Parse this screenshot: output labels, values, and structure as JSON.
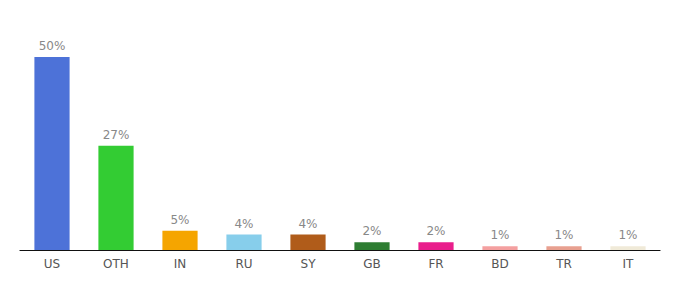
{
  "chart_data": {
    "type": "bar",
    "categories": [
      "US",
      "OTH",
      "IN",
      "RU",
      "SY",
      "GB",
      "FR",
      "BD",
      "TR",
      "IT"
    ],
    "values": [
      50,
      27,
      5,
      4,
      4,
      2,
      2,
      1,
      1,
      1
    ],
    "value_labels": [
      "50%",
      "27%",
      "5%",
      "4%",
      "4%",
      "2%",
      "2%",
      "1%",
      "1%",
      "1%"
    ],
    "colors": [
      "#4d72d8",
      "#33cc33",
      "#f5a500",
      "#87ceeb",
      "#b05c1a",
      "#2e7d32",
      "#e91e8c",
      "#f4a0a0",
      "#e8a090",
      "#f0ead8"
    ],
    "ylim": [
      0,
      57
    ],
    "data_labels": true,
    "tick_labels": "x",
    "grid": false
  }
}
